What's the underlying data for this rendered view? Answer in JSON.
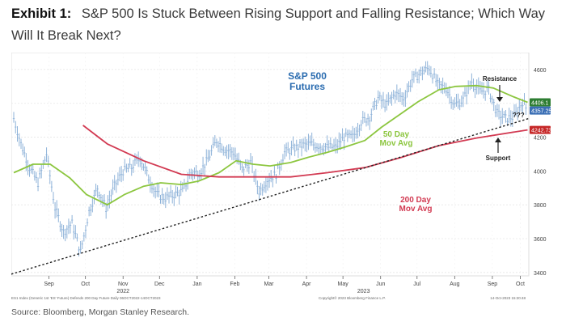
{
  "exhibit": {
    "label": "Exhibit 1:",
    "title": "S&P 500 Is Stuck Between Rising Support and Falling Resistance; Which Way Will It Break Next?"
  },
  "source": "Source: Bloomberg, Morgan Stanley Research.",
  "footer": {
    "left": "ES1 Index (Generic 1st 'ES' Future) Defends 200 Day Future Daily 06OCT2022-14OCT2023",
    "center": "Copyright© 2023 Bloomberg Finance L.P.",
    "right": "14-Oct-2023 15:20:48"
  },
  "colors": {
    "price": "#8fb3d9",
    "ma50": "#8cc63f",
    "ma200": "#d23a52",
    "support": "#222222",
    "annotation_blue": "#2b6cb0",
    "tag_price1": "#2e7d32",
    "tag_price2": "#3b6fb5",
    "tag_price3": "#c62828"
  },
  "chart_data": {
    "type": "line",
    "title": "S&P 500 Futures",
    "xlabel": "",
    "ylabel": "",
    "ylim": [
      3380,
      4700
    ],
    "x_range": [
      "2022-08-14",
      "2023-10-14"
    ],
    "yticks": [
      3400,
      3600,
      3800,
      4000,
      4200,
      4400,
      4600
    ],
    "month_ticks": [
      {
        "label": "Sep",
        "date": "2022-09-14"
      },
      {
        "label": "Oct",
        "date": "2022-10-14"
      },
      {
        "label": "Nov",
        "date": "2022-11-14"
      },
      {
        "label": "Dec",
        "date": "2022-12-14"
      },
      {
        "label": "Jan",
        "date": "2023-01-14"
      },
      {
        "label": "Feb",
        "date": "2023-02-14"
      },
      {
        "label": "Mar",
        "date": "2023-03-14"
      },
      {
        "label": "Apr",
        "date": "2023-04-14"
      },
      {
        "label": "May",
        "date": "2023-05-14"
      },
      {
        "label": "Jun",
        "date": "2023-06-14"
      },
      {
        "label": "Jul",
        "date": "2023-07-14"
      },
      {
        "label": "Aug",
        "date": "2023-08-14"
      },
      {
        "label": "Sep",
        "date": "2023-09-14"
      },
      {
        "label": "Oct",
        "date": "2023-10-07"
      }
    ],
    "year_labels": [
      {
        "label": "2022",
        "date": "2022-11-14"
      },
      {
        "label": "2023",
        "date": "2023-05-31"
      }
    ],
    "series": [
      {
        "name": "S&P 500 Futures",
        "points": [
          [
            "2022-08-16",
            4310
          ],
          [
            "2022-08-22",
            4160
          ],
          [
            "2022-08-29",
            4020
          ],
          [
            "2022-09-05",
            3930
          ],
          [
            "2022-09-12",
            4100
          ],
          [
            "2022-09-19",
            3780
          ],
          [
            "2022-09-26",
            3640
          ],
          [
            "2022-10-03",
            3690
          ],
          [
            "2022-10-10",
            3520
          ],
          [
            "2022-10-17",
            3760
          ],
          [
            "2022-10-24",
            3900
          ],
          [
            "2022-10-31",
            3780
          ],
          [
            "2022-11-07",
            3910
          ],
          [
            "2022-11-14",
            4000
          ],
          [
            "2022-11-21",
            4020
          ],
          [
            "2022-11-28",
            4080
          ],
          [
            "2022-12-05",
            3960
          ],
          [
            "2022-12-12",
            3860
          ],
          [
            "2022-12-19",
            3840
          ],
          [
            "2022-12-26",
            3860
          ],
          [
            "2023-01-02",
            3880
          ],
          [
            "2023-01-09",
            3990
          ],
          [
            "2023-01-16",
            3990
          ],
          [
            "2023-01-23",
            4070
          ],
          [
            "2023-01-30",
            4180
          ],
          [
            "2023-02-06",
            4130
          ],
          [
            "2023-02-13",
            4110
          ],
          [
            "2023-02-20",
            4010
          ],
          [
            "2023-02-27",
            4050
          ],
          [
            "2023-03-06",
            3880
          ],
          [
            "2023-03-13",
            3950
          ],
          [
            "2023-03-20",
            3980
          ],
          [
            "2023-03-27",
            4110
          ],
          [
            "2023-04-03",
            4130
          ],
          [
            "2023-04-10",
            4150
          ],
          [
            "2023-04-17",
            4160
          ],
          [
            "2023-04-24",
            4150
          ],
          [
            "2023-05-01",
            4140
          ],
          [
            "2023-05-08",
            4140
          ],
          [
            "2023-05-15",
            4200
          ],
          [
            "2023-05-22",
            4200
          ],
          [
            "2023-05-29",
            4290
          ],
          [
            "2023-06-05",
            4320
          ],
          [
            "2023-06-12",
            4430
          ],
          [
            "2023-06-19",
            4390
          ],
          [
            "2023-06-26",
            4460
          ],
          [
            "2023-07-03",
            4430
          ],
          [
            "2023-07-10",
            4540
          ],
          [
            "2023-07-17",
            4580
          ],
          [
            "2023-07-24",
            4610
          ],
          [
            "2023-07-31",
            4510
          ],
          [
            "2023-08-07",
            4490
          ],
          [
            "2023-08-14",
            4390
          ],
          [
            "2023-08-21",
            4420
          ],
          [
            "2023-08-28",
            4530
          ],
          [
            "2023-09-04",
            4470
          ],
          [
            "2023-09-11",
            4480
          ],
          [
            "2023-09-18",
            4340
          ],
          [
            "2023-09-25",
            4310
          ],
          [
            "2023-10-02",
            4320
          ],
          [
            "2023-10-09",
            4410
          ],
          [
            "2023-10-13",
            4357
          ]
        ]
      },
      {
        "name": "50 Day Mov Avg",
        "points": [
          [
            "2022-08-16",
            3990
          ],
          [
            "2022-09-01",
            4040
          ],
          [
            "2022-09-15",
            4040
          ],
          [
            "2022-10-01",
            3960
          ],
          [
            "2022-10-15",
            3860
          ],
          [
            "2022-11-01",
            3800
          ],
          [
            "2022-11-15",
            3860
          ],
          [
            "2022-12-01",
            3910
          ],
          [
            "2022-12-15",
            3930
          ],
          [
            "2023-01-01",
            3920
          ],
          [
            "2023-01-15",
            3940
          ],
          [
            "2023-02-01",
            3990
          ],
          [
            "2023-02-15",
            4060
          ],
          [
            "2023-03-01",
            4040
          ],
          [
            "2023-03-15",
            4030
          ],
          [
            "2023-04-01",
            4050
          ],
          [
            "2023-04-15",
            4080
          ],
          [
            "2023-05-01",
            4110
          ],
          [
            "2023-05-15",
            4140
          ],
          [
            "2023-06-01",
            4180
          ],
          [
            "2023-06-15",
            4260
          ],
          [
            "2023-07-01",
            4340
          ],
          [
            "2023-07-15",
            4410
          ],
          [
            "2023-08-01",
            4480
          ],
          [
            "2023-08-15",
            4500
          ],
          [
            "2023-09-01",
            4505
          ],
          [
            "2023-09-15",
            4490
          ],
          [
            "2023-10-01",
            4440
          ],
          [
            "2023-10-13",
            4406
          ]
        ]
      },
      {
        "name": "200 Day Mov Avg",
        "points": [
          [
            "2022-10-12",
            4270
          ],
          [
            "2022-11-01",
            4160
          ],
          [
            "2022-12-01",
            4060
          ],
          [
            "2023-01-01",
            3980
          ],
          [
            "2023-02-01",
            3965
          ],
          [
            "2023-03-01",
            3965
          ],
          [
            "2023-04-01",
            3965
          ],
          [
            "2023-05-01",
            3990
          ],
          [
            "2023-06-01",
            4020
          ],
          [
            "2023-07-01",
            4080
          ],
          [
            "2023-08-01",
            4150
          ],
          [
            "2023-09-01",
            4195
          ],
          [
            "2023-10-13",
            4243
          ]
        ]
      },
      {
        "name": "Support trendline",
        "points": [
          [
            "2022-08-14",
            3390
          ],
          [
            "2023-10-14",
            4310
          ]
        ]
      }
    ],
    "last_values": [
      "4406.1",
      "4357.25",
      "4242.73"
    ],
    "annotations": {
      "futures_title": [
        "S&P 500",
        "Futures"
      ],
      "ma50_label": [
        "50 Day",
        "Mov Avg"
      ],
      "ma200_label": [
        "200 Day",
        "Mov Avg"
      ],
      "resistance": "Resistance",
      "support": "Support",
      "question": "???"
    }
  }
}
